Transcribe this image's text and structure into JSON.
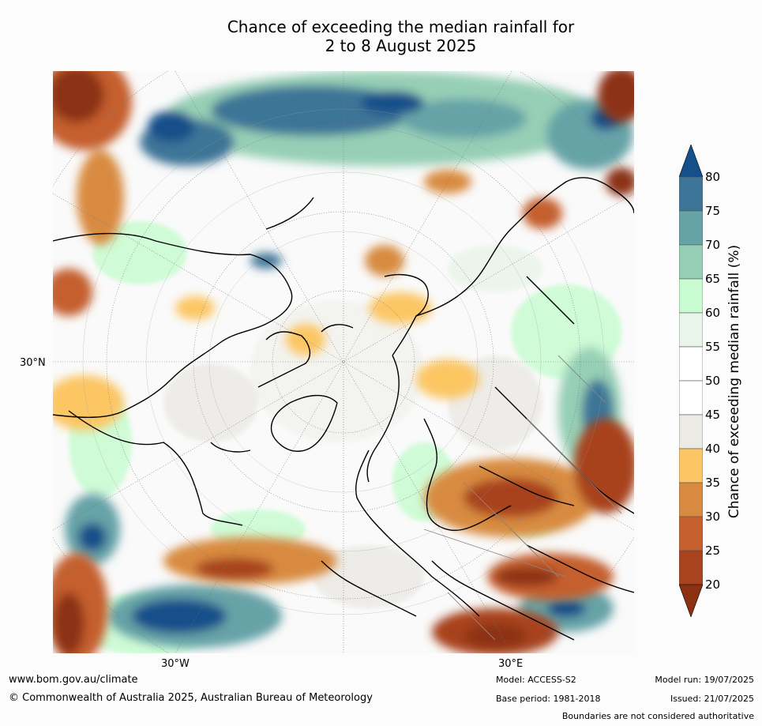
{
  "title": {
    "line1": "Chance of exceeding the median rainfall for",
    "line2": "2 to 8 August 2025"
  },
  "map": {
    "projection": "north-polar-stereographic",
    "longitude_labels": [
      "30°W",
      "30°E"
    ],
    "latitude_labels": [
      "30°N"
    ]
  },
  "colorbar": {
    "label": "Chance of exceeding median rainfall (%)",
    "ticks": [
      "20",
      "25",
      "30",
      "35",
      "40",
      "45",
      "50",
      "55",
      "60",
      "65",
      "70",
      "75",
      "80"
    ],
    "colors": [
      "#8c3213",
      "#a8431f",
      "#c55f2d",
      "#d88b40",
      "#fcc664",
      "#ebeae5",
      "#ffffff",
      "#ffffff",
      "#e9f5ea",
      "#c8fcd0",
      "#96cfb5",
      "#66a3a7",
      "#3c7597",
      "#15508a"
    ]
  },
  "footer": {
    "url": "www.bom.gov.au/climate",
    "copyright": "© Commonwealth of Australia 2025, Australian Bureau of Meteorology",
    "model": "Model: ACCESS-S2",
    "base_period": "Base period: 1981-2018",
    "model_run": "Model run: 19/07/2025",
    "issued": "Issued: 21/07/2025",
    "disclaimer": "Boundaries are not considered authoritative"
  }
}
